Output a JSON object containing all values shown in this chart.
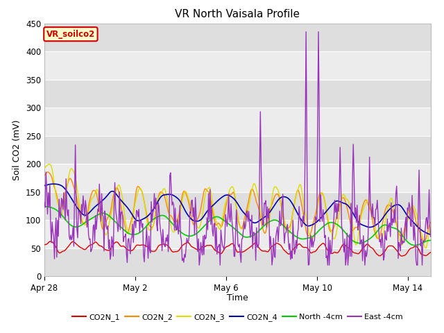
{
  "title": "VR North Vaisala Profile",
  "ylabel": "Soil CO2 (mV)",
  "xlabel": "Time",
  "ylim": [
    0,
    450
  ],
  "yticks": [
    0,
    50,
    100,
    150,
    200,
    250,
    300,
    350,
    400,
    450
  ],
  "annotation_box": "VR_soilco2",
  "annotation_box_bg": "#FFFFCC",
  "annotation_box_border": "#CC0000",
  "fig_bg_color": "#FFFFFF",
  "plot_bg_color": "#E8E8E8",
  "grid_color": "#FFFFFF",
  "legend_labels": [
    "CO2N_1",
    "CO2N_2",
    "CO2N_3",
    "CO2N_4",
    "North -4cm",
    "East -4cm"
  ],
  "line_colors": [
    "#DD0000",
    "#FF8800",
    "#DDDD00",
    "#0000AA",
    "#00CC00",
    "#9933BB"
  ],
  "line_widths": [
    1.0,
    1.0,
    1.0,
    1.2,
    1.2,
    1.0
  ],
  "xtick_positions": [
    0,
    4,
    8,
    12,
    16
  ],
  "xtick_labels": [
    "Apr 28",
    "May 2",
    "May 6",
    "May 10",
    "May 14"
  ],
  "xlim": [
    0,
    17
  ],
  "num_points": 500,
  "seed": 7
}
